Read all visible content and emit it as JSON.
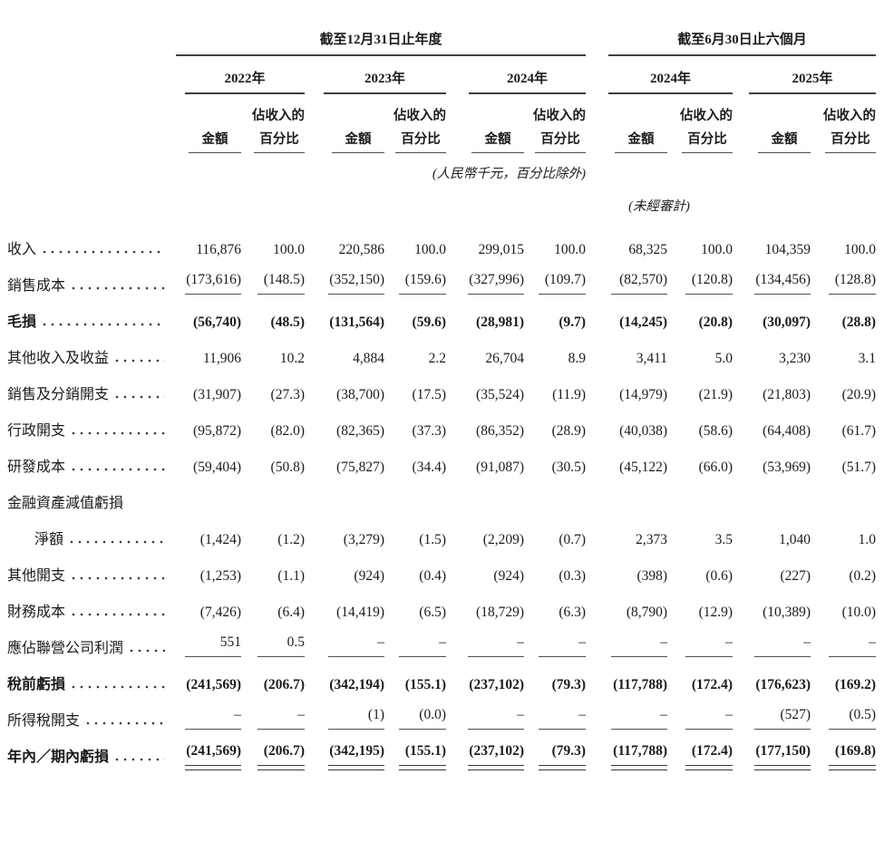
{
  "table": {
    "period_groups": [
      {
        "title": "截至12月31日止年度",
        "years": [
          "2022年",
          "2023年",
          "2024年"
        ]
      },
      {
        "title": "截至6月30日止六個月",
        "years": [
          "2024年",
          "2025年"
        ]
      }
    ],
    "col_headers": {
      "amount": "金額",
      "pct_top": "佔收入的",
      "pct_bottom": "百分比"
    },
    "notes": {
      "units": "(人民幣千元，百分比除外)",
      "unaudited": "(未經審計)"
    },
    "rows": [
      {
        "label": "收入",
        "leader": true,
        "values": [
          "116,876",
          "100.0",
          "220,586",
          "100.0",
          "299,015",
          "100.0",
          "68,325",
          "100.0",
          "104,359",
          "100.0"
        ]
      },
      {
        "label": "銷售成本",
        "leader": true,
        "underline": "single",
        "values": [
          "(173,616)",
          "(148.5)",
          "(352,150)",
          "(159.6)",
          "(327,996)",
          "(109.7)",
          "(82,570)",
          "(120.8)",
          "(134,456)",
          "(128.8)"
        ]
      },
      {
        "label": "毛損",
        "leader": true,
        "bold": true,
        "values": [
          "(56,740)",
          "(48.5)",
          "(131,564)",
          "(59.6)",
          "(28,981)",
          "(9.7)",
          "(14,245)",
          "(20.8)",
          "(30,097)",
          "(28.8)"
        ]
      },
      {
        "label": "其他收入及收益",
        "leader": true,
        "values": [
          "11,906",
          "10.2",
          "4,884",
          "2.2",
          "26,704",
          "8.9",
          "3,411",
          "5.0",
          "3,230",
          "3.1"
        ]
      },
      {
        "label": "銷售及分銷開支",
        "leader": true,
        "values": [
          "(31,907)",
          "(27.3)",
          "(38,700)",
          "(17.5)",
          "(35,524)",
          "(11.9)",
          "(14,979)",
          "(21.9)",
          "(21,803)",
          "(20.9)"
        ]
      },
      {
        "label": "行政開支",
        "leader": true,
        "values": [
          "(95,872)",
          "(82.0)",
          "(82,365)",
          "(37.3)",
          "(86,352)",
          "(28.9)",
          "(40,038)",
          "(58.6)",
          "(64,408)",
          "(61.7)"
        ]
      },
      {
        "label": "研發成本",
        "leader": true,
        "values": [
          "(59,404)",
          "(50.8)",
          "(75,827)",
          "(34.4)",
          "(91,087)",
          "(30.5)",
          "(45,122)",
          "(66.0)",
          "(53,969)",
          "(51.7)"
        ]
      },
      {
        "label": "金融資產減值虧損",
        "leader": false,
        "values": []
      },
      {
        "label": "淨額",
        "leader": true,
        "indent": true,
        "values": [
          "(1,424)",
          "(1.2)",
          "(3,279)",
          "(1.5)",
          "(2,209)",
          "(0.7)",
          "2,373",
          "3.5",
          "1,040",
          "1.0"
        ]
      },
      {
        "label": "其他開支",
        "leader": true,
        "values": [
          "(1,253)",
          "(1.1)",
          "(924)",
          "(0.4)",
          "(924)",
          "(0.3)",
          "(398)",
          "(0.6)",
          "(227)",
          "(0.2)"
        ]
      },
      {
        "label": "財務成本",
        "leader": true,
        "values": [
          "(7,426)",
          "(6.4)",
          "(14,419)",
          "(6.5)",
          "(18,729)",
          "(6.3)",
          "(8,790)",
          "(12.9)",
          "(10,389)",
          "(10.0)"
        ]
      },
      {
        "label": "應佔聯營公司利潤",
        "leader": true,
        "underline": "single",
        "values": [
          "551",
          "0.5",
          "–",
          "–",
          "–",
          "–",
          "–",
          "–",
          "–",
          "–"
        ]
      },
      {
        "label": "稅前虧損",
        "leader": true,
        "bold": true,
        "values": [
          "(241,569)",
          "(206.7)",
          "(342,194)",
          "(155.1)",
          "(237,102)",
          "(79.3)",
          "(117,788)",
          "(172.4)",
          "(176,623)",
          "(169.2)"
        ]
      },
      {
        "label": "所得稅開支",
        "leader": true,
        "underline": "single",
        "values": [
          "–",
          "–",
          "(1)",
          "(0.0)",
          "–",
          "–",
          "–",
          "–",
          "(527)",
          "(0.5)"
        ]
      },
      {
        "label": "年內／期內虧損",
        "leader": true,
        "bold": true,
        "underline": "double",
        "values": [
          "(241,569)",
          "(206.7)",
          "(342,195)",
          "(155.1)",
          "(237,102)",
          "(79.3)",
          "(117,788)",
          "(172.4)",
          "(177,150)",
          "(169.8)"
        ]
      }
    ]
  }
}
